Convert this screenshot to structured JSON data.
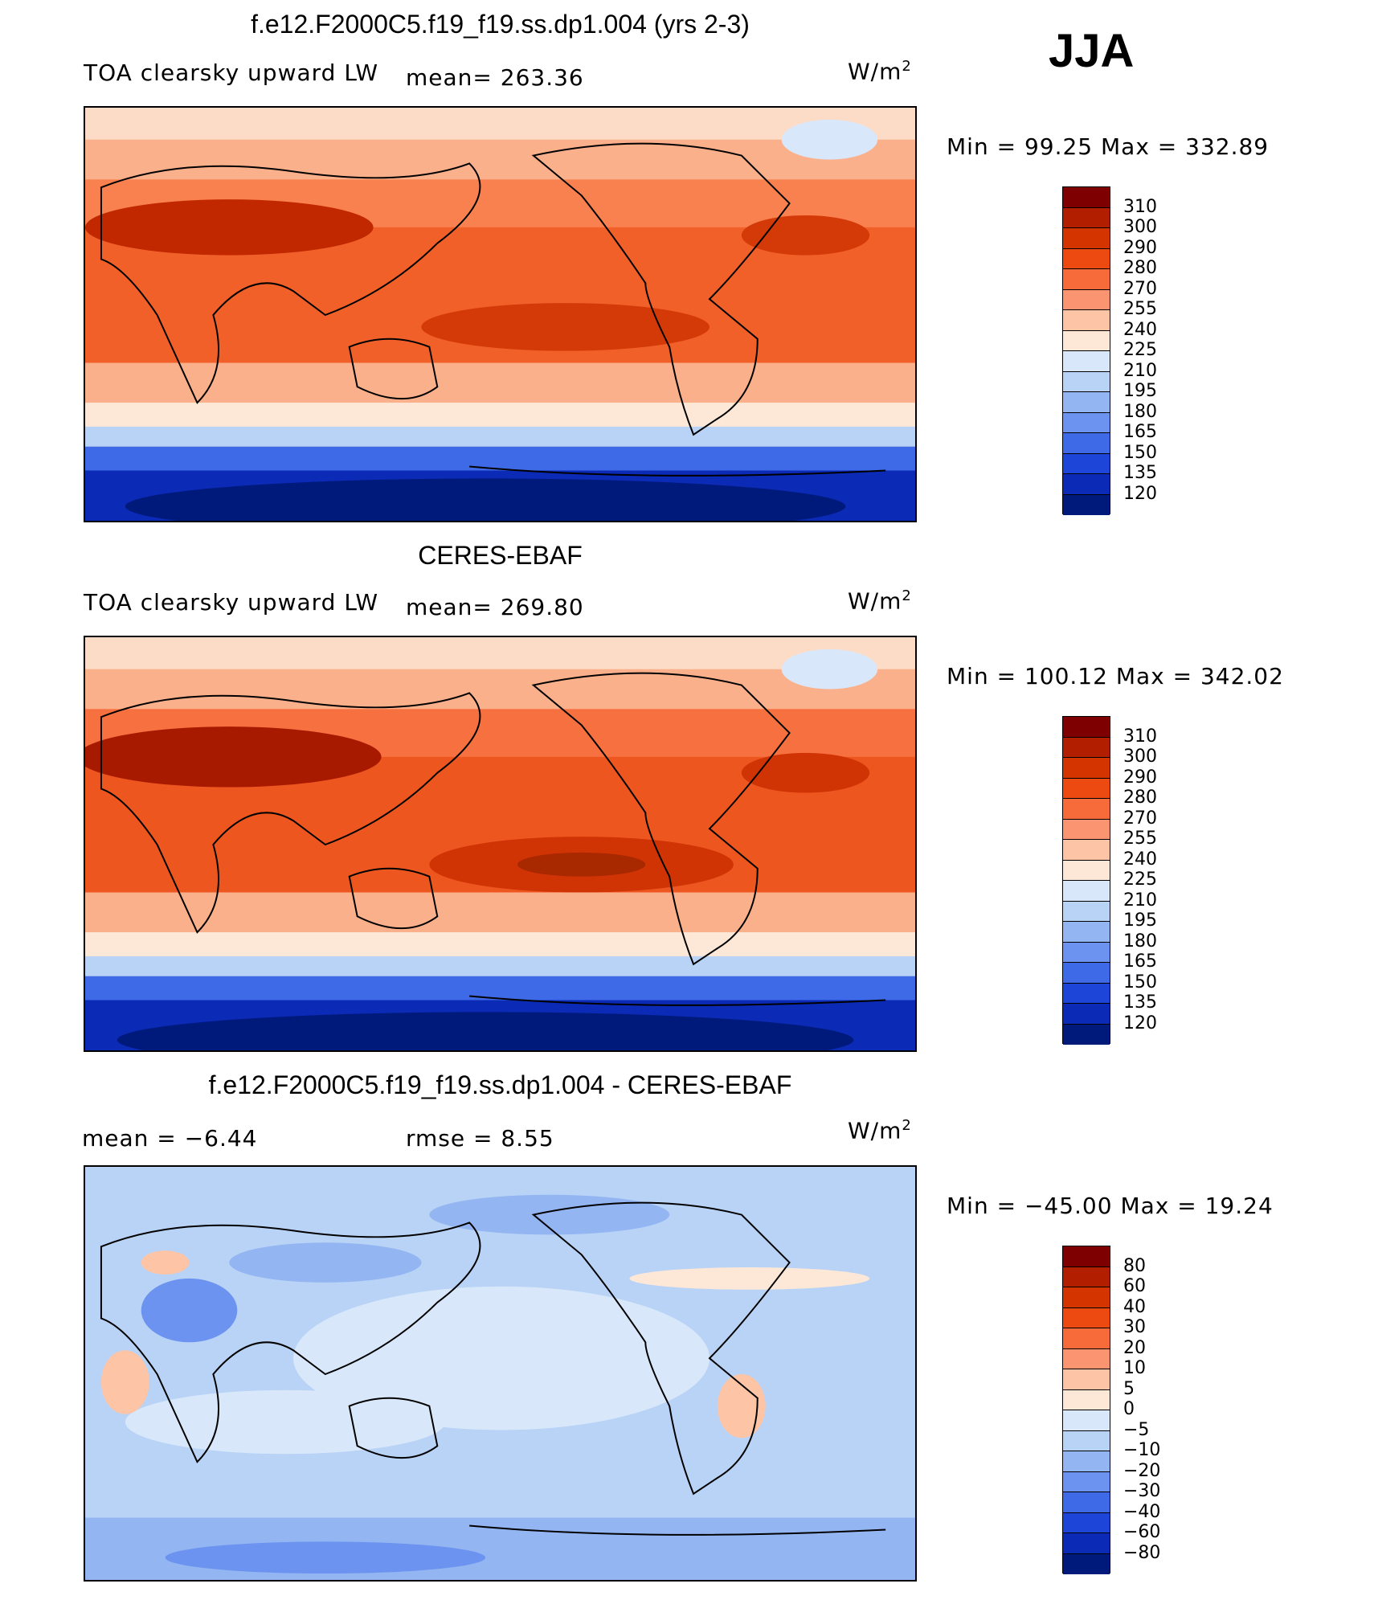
{
  "season": "JJA",
  "panels": [
    {
      "title": "f.e12.F2000C5.f19_f19.ss.dp1.004 (yrs 2-3)",
      "left_label": "TOA clearsky upward LW",
      "mid_label": "mean=  263.36",
      "units": "W/m",
      "units_sup": "2",
      "minmax": "Min =   99.25 Max =  332.89",
      "colorbar": {
        "labels": [
          "310",
          "300",
          "290",
          "280",
          "270",
          "255",
          "240",
          "225",
          "210",
          "195",
          "180",
          "165",
          "150",
          "135",
          "120"
        ],
        "colors": [
          "#7f0000",
          "#b21f00",
          "#d43400",
          "#ec4a10",
          "#f76b3a",
          "#fb9470",
          "#fdc4a6",
          "#fde8d8",
          "#d8e8fa",
          "#b9d3f6",
          "#93b5f2",
          "#6b93ef",
          "#3e6ae8",
          "#1d45d8",
          "#0b2ab5",
          "#001a7c"
        ]
      }
    },
    {
      "title": "CERES-EBAF",
      "left_label": "TOA clearsky upward LW",
      "mid_label": "mean=  269.80",
      "units": "W/m",
      "units_sup": "2",
      "minmax": "Min =  100.12 Max =  342.02",
      "colorbar": {
        "labels": [
          "310",
          "300",
          "290",
          "280",
          "270",
          "255",
          "240",
          "225",
          "210",
          "195",
          "180",
          "165",
          "150",
          "135",
          "120"
        ],
        "colors": [
          "#7f0000",
          "#b21f00",
          "#d43400",
          "#ec4a10",
          "#f76b3a",
          "#fb9470",
          "#fdc4a6",
          "#fde8d8",
          "#d8e8fa",
          "#b9d3f6",
          "#93b5f2",
          "#6b93ef",
          "#3e6ae8",
          "#1d45d8",
          "#0b2ab5",
          "#001a7c"
        ]
      }
    },
    {
      "title": "f.e12.F2000C5.f19_f19.ss.dp1.004 - CERES-EBAF",
      "left_label": "mean =   −6.44",
      "mid_label": "rmse =    8.55",
      "units": "W/m",
      "units_sup": "2",
      "minmax": "Min = −45.00 Max =   19.24",
      "colorbar": {
        "labels": [
          "80",
          "60",
          "40",
          "30",
          "20",
          "10",
          "5",
          "0",
          "−5",
          "−10",
          "−20",
          "−30",
          "−40",
          "−60",
          "−80"
        ],
        "colors": [
          "#7f0000",
          "#b21f00",
          "#d43400",
          "#ec4a10",
          "#f76b3a",
          "#fb9470",
          "#fdc4a6",
          "#fde8d8",
          "#d8e8fa",
          "#b9d3f6",
          "#93b5f2",
          "#6b93ef",
          "#3e6ae8",
          "#1d45d8",
          "#0b2ab5",
          "#001a7c"
        ]
      }
    }
  ]
}
